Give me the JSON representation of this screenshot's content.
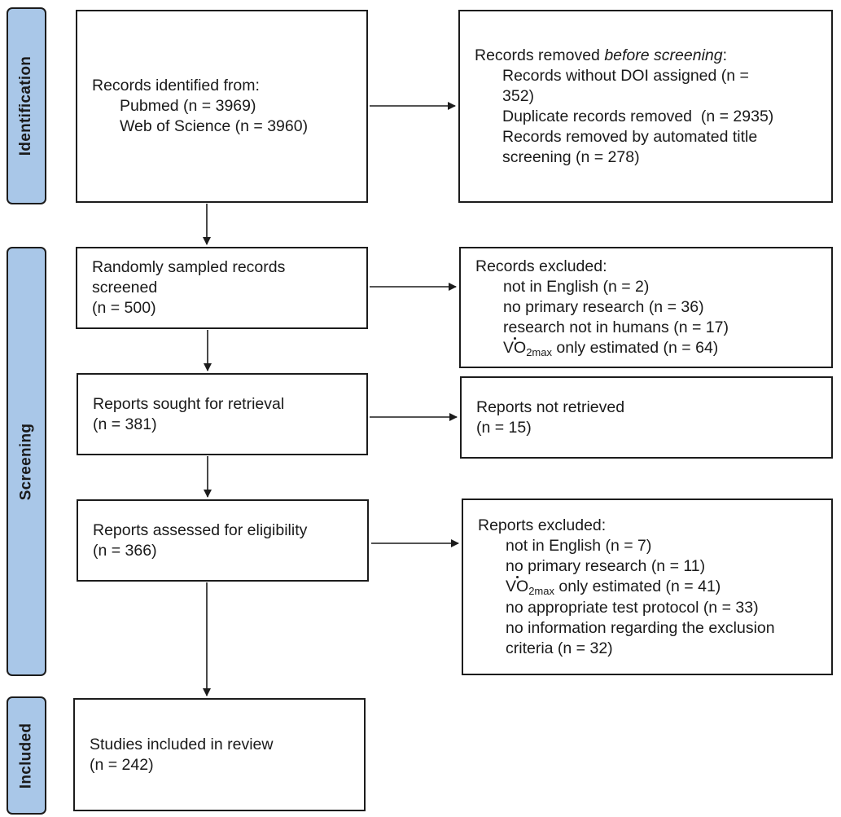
{
  "phases": {
    "identification": "Identification",
    "screening": "Screening",
    "included": "Included"
  },
  "identified": {
    "title": "Records identified from:",
    "items": [
      "Pubmed (n = 3969)",
      "Web of Science (n = 3960)"
    ]
  },
  "removed": {
    "title_prefix": "Records removed ",
    "title_em": "before screening",
    "title_suffix": ":",
    "items": [
      "Records without DOI assigned (n = 352)",
      "Duplicate records removed  (n = 2935)",
      "Records removed by automated title screening (n = 278)"
    ]
  },
  "screened": {
    "line1": "Randomly sampled records screened",
    "line2": "(n = 500)"
  },
  "records_excluded": {
    "title": "Records excluded:",
    "items": [
      "not in English (n = 2)",
      "no primary research (n = 36)",
      "research not in humans (n = 17)"
    ],
    "vo2_prefix": "VO",
    "vo2_sub": "2max",
    "vo2_suffix": " only estimated (n = 64)"
  },
  "sought": {
    "line1": "Reports sought for retrieval",
    "line2": "(n = 381)"
  },
  "not_retrieved": {
    "line1": "Reports not retrieved",
    "line2": "(n = 15)"
  },
  "assessed": {
    "line1": "Reports assessed for eligibility",
    "line2": "(n = 366)"
  },
  "reports_excluded": {
    "title": "Reports excluded:",
    "items_before": [
      "not in English (n = 7)",
      "no primary research (n = 11)"
    ],
    "vo2_prefix": "VO",
    "vo2_sub": "2max",
    "vo2_suffix": " only estimated (n = 41)",
    "items_after": [
      "no appropriate test protocol (n = 33)",
      "no information regarding the exclusion criteria (n = 32)"
    ]
  },
  "included": {
    "line1": "Studies included in review",
    "line2": "(n = 242)"
  }
}
